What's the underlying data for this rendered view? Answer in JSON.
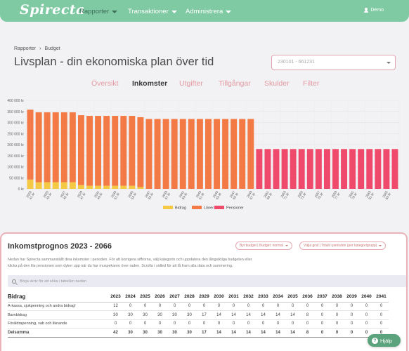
{
  "nav": {
    "logo": "Spirecta",
    "items": [
      {
        "label": "Rapporter"
      },
      {
        "label": "Transaktioner"
      },
      {
        "label": "Administrera"
      }
    ],
    "user": "Demo",
    "colors": {
      "bar": "#7fcaa3",
      "active_text": "#3c6e58"
    }
  },
  "breadcrumb": [
    "Rapporter",
    "Budget"
  ],
  "page_title": "Livsplan - din ekonomiska plan över tid",
  "period_select": {
    "value": "230101 - 661231"
  },
  "tabs": [
    "Översikt",
    "Inkomster",
    "Utgifter",
    "Tillgångar",
    "Skulder",
    "Filter"
  ],
  "active_tab": "Inkomster",
  "chart_data": {
    "type": "bar",
    "stacked": true,
    "categories": [
      "2023 41 år",
      "2024",
      "2025 43 år",
      "2026",
      "2027 45 år",
      "2028",
      "2029 47 år",
      "2030",
      "2031 49 år",
      "2032",
      "2033 51 år",
      "2034",
      "2035 53 år",
      "2036",
      "2037 55 år",
      "2038",
      "2039 57 år",
      "2040",
      "2041 59 år",
      "2042",
      "2043 61 år",
      "2044",
      "2045 63 år",
      "2046",
      "2047 65 år",
      "2048",
      "2049 67 år",
      "2050",
      "2051 69 år",
      "2052",
      "2053 71 år",
      "2054",
      "2055 73 år",
      "2056",
      "2057 75 år",
      "2058",
      "2059 77 år",
      "2060",
      "2061 79 år",
      "2062",
      "2063 81 år",
      "2064",
      "2065 83 år",
      "2066"
    ],
    "tick_labels": [
      "2023\n41 år",
      "2025\n43 år",
      "2027\n45 år",
      "2029\n47 år",
      "2031\n49 år",
      "2033\n51 år",
      "2035\n53 år",
      "2037\n55 år",
      "2039\n57 år",
      "2041\n59 år",
      "2043\n61 år",
      "2045\n63 år",
      "2047\n65 år",
      "2049\n67 år",
      "2051\n69 år",
      "2053\n71 år",
      "2055\n73 år",
      "2057\n75 år",
      "2059\n77 år",
      "2061\n79 år",
      "2063\n81 år",
      "2065\n83 år"
    ],
    "series": [
      {
        "name": "Bidrag",
        "color": "#f6c944",
        "values": [
          42,
          30,
          30,
          30,
          30,
          30,
          17,
          14,
          14,
          14,
          14,
          14,
          14,
          8,
          0,
          0,
          0,
          0,
          0,
          0,
          0,
          0,
          0,
          0,
          0,
          0,
          0,
          0,
          0,
          0,
          0,
          0,
          0,
          0,
          0,
          0,
          0,
          0,
          0,
          0,
          0,
          0,
          0,
          0
        ]
      },
      {
        "name": "Löner",
        "color": "#f47a45",
        "values": [
          316,
          316,
          316,
          316,
          316,
          316,
          316,
          316,
          316,
          316,
          316,
          316,
          316,
          316,
          316,
          316,
          316,
          316,
          316,
          316,
          316,
          316,
          316,
          316,
          316,
          316,
          316,
          0,
          0,
          0,
          0,
          0,
          0,
          0,
          0,
          0,
          0,
          0,
          0,
          0,
          0,
          0,
          0,
          0
        ]
      },
      {
        "name": "Pensioner",
        "color": "#ef4a6b",
        "values": [
          0,
          0,
          0,
          0,
          0,
          0,
          0,
          0,
          0,
          0,
          0,
          0,
          0,
          0,
          0,
          0,
          0,
          0,
          0,
          0,
          0,
          0,
          0,
          0,
          0,
          0,
          0,
          180,
          180,
          180,
          180,
          180,
          180,
          180,
          180,
          180,
          180,
          180,
          180,
          180,
          180,
          180,
          180,
          180
        ]
      }
    ],
    "yticks": [
      "0 kr",
      "50 000 kr",
      "100 000 kr",
      "150 000 kr",
      "200 000 kr",
      "250 000 kr",
      "300 000 kr",
      "350 000 kr",
      "400 000 kr"
    ],
    "ylim": [
      0,
      400000
    ],
    "value_unit": "thousand kr",
    "legend_position": "bottom",
    "grid": true
  },
  "card": {
    "title": "Inkomstprognos 2023 - 2066",
    "button_budget": "Byt budget | Budget: normal",
    "button_graph": "Välja graf | Totalt i perioden (per kategorigrupp)",
    "description": "Nedan har Spirecta sammanställt dina inkomster i perioden. För att korrigera siffrorna, välj kategorin och uppdatera den långsiktiga budgeten eller klicka på den lila pensionen som dyker upp när du har muspekaren över raden. Scrolla i sidled för att få fram alla data och summering.",
    "search_placeholder": "Börja skriv för att söka i tabellen nedan"
  },
  "table": {
    "header": "Bidrag",
    "years": [
      "2023",
      "2024",
      "2025",
      "2026",
      "2027",
      "2028",
      "2029",
      "2030",
      "2031",
      "2032",
      "2033",
      "2034",
      "2035",
      "2036",
      "2037",
      "2038",
      "2039",
      "2040",
      "2041"
    ],
    "rows": [
      {
        "label": "A-kassa, sjukpenning och andra bidrag!",
        "values": [
          "12",
          "0",
          "0",
          "0",
          "0",
          "0",
          "0",
          "0",
          "0",
          "0",
          "0",
          "0",
          "0",
          "0",
          "0",
          "0",
          "0",
          "0",
          "0"
        ]
      },
      {
        "label": "Barnbidrag",
        "values": [
          "30",
          "30",
          "30",
          "30",
          "30",
          "30",
          "17",
          "14",
          "14",
          "14",
          "14",
          "14",
          "14",
          "8",
          "0",
          "0",
          "0",
          "0",
          "0"
        ]
      },
      {
        "label": "Föräldrapenning, vab och liknande",
        "values": [
          "0",
          "0",
          "0",
          "0",
          "0",
          "0",
          "0",
          "0",
          "0",
          "0",
          "0",
          "0",
          "0",
          "0",
          "0",
          "0",
          "0",
          "0",
          "0"
        ]
      }
    ],
    "sum": {
      "label": "Delsumma",
      "values": [
        "42",
        "30",
        "30",
        "30",
        "30",
        "30",
        "17",
        "14",
        "14",
        "14",
        "14",
        "14",
        "14",
        "8",
        "0",
        "0",
        "0",
        "0",
        "0"
      ]
    }
  },
  "help_button": "Hjälp"
}
